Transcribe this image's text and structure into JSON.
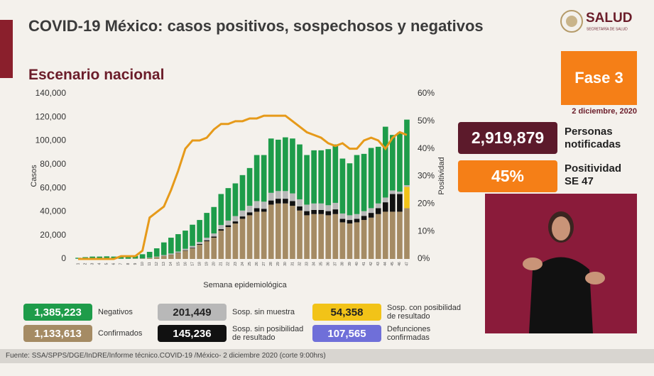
{
  "header": {
    "title": "COVID-19 México: casos positivos, sospechosos y negativos",
    "subtitle": "Escenario nacional",
    "logo": "SALUD",
    "logo_sub": "SECRETARÍA DE SALUD"
  },
  "chart_data": {
    "type": "bar",
    "stacked": true,
    "x_label": "Semana epidemiológica",
    "y_label": "Casos",
    "y2_label": "Positividad",
    "categories": [
      "1",
      "2",
      "3",
      "4",
      "5",
      "6",
      "7",
      "8",
      "9",
      "10",
      "11",
      "12",
      "13",
      "14",
      "15",
      "16",
      "17",
      "18",
      "19",
      "20",
      "21",
      "22",
      "23",
      "24",
      "25",
      "26",
      "27",
      "28",
      "29",
      "30",
      "31",
      "32",
      "33",
      "34",
      "35",
      "36",
      "37",
      "38",
      "39",
      "40",
      "41",
      "42",
      "43",
      "44",
      "45",
      "46",
      "47"
    ],
    "ylim": [
      0,
      140000
    ],
    "yticks": [
      0,
      {
        "value": 20000,
        "label": "20,000"
      },
      {
        "value": 40000,
        "label": "40,000"
      },
      {
        "value": 60000,
        "label": "60,000"
      },
      {
        "value": 80000,
        "label": "80,000"
      },
      {
        "value": 100000,
        "label": "100,000"
      },
      {
        "value": 120000,
        "label": "120,000"
      },
      {
        "value": 140000,
        "label": "140,000"
      }
    ],
    "y2lim": [
      0,
      60
    ],
    "y2ticks": [
      {
        "value": 0,
        "label": "0%"
      },
      {
        "value": 10,
        "label": "10%"
      },
      {
        "value": 20,
        "label": "20%"
      },
      {
        "value": 30,
        "label": "30%"
      },
      {
        "value": 40,
        "label": "40%"
      },
      {
        "value": 50,
        "label": "50%"
      },
      {
        "value": 60,
        "label": "60%"
      }
    ],
    "series": [
      {
        "name": "Confirmados",
        "color": "#a58b64",
        "total": "1,133,613",
        "values": [
          100,
          100,
          100,
          100,
          100,
          100,
          100,
          100,
          200,
          300,
          700,
          1500,
          2500,
          3500,
          5000,
          7000,
          9000,
          12000,
          15000,
          18000,
          24000,
          27000,
          30000,
          34000,
          37000,
          40000,
          40000,
          46000,
          47000,
          47000,
          45000,
          41000,
          37000,
          38000,
          38000,
          37000,
          38000,
          31000,
          30000,
          31000,
          33000,
          35000,
          38000,
          40000,
          40000,
          40000,
          43000
        ]
      },
      {
        "name": "Sosp. sin posibilidad de resultado",
        "color": "#111111",
        "total": "145,236",
        "values": [
          0,
          0,
          0,
          0,
          0,
          0,
          0,
          0,
          0,
          0,
          0,
          0,
          100,
          200,
          300,
          400,
          500,
          600,
          800,
          1000,
          1200,
          1500,
          1800,
          2000,
          2500,
          3000,
          2500,
          3500,
          4000,
          4000,
          4000,
          3500,
          3500,
          3500,
          3500,
          3500,
          4000,
          3000,
          3000,
          3000,
          3500,
          4000,
          5000,
          8000,
          15000,
          15000,
          0
        ]
      },
      {
        "name": "Sosp. con posibilidad de resultado",
        "color": "#f2c318",
        "total": "54,358",
        "values": [
          0,
          0,
          0,
          0,
          0,
          0,
          0,
          0,
          0,
          0,
          0,
          0,
          0,
          0,
          0,
          0,
          0,
          0,
          0,
          0,
          0,
          0,
          0,
          0,
          0,
          0,
          0,
          0,
          0,
          0,
          0,
          0,
          0,
          0,
          0,
          0,
          0,
          0,
          0,
          0,
          0,
          0,
          0,
          0,
          0,
          0,
          18000
        ]
      },
      {
        "name": "Sosp. sin muestra",
        "color": "#b8b8b8",
        "total": "201,449",
        "values": [
          100,
          100,
          100,
          100,
          100,
          100,
          100,
          100,
          200,
          200,
          300,
          500,
          700,
          900,
          1000,
          1200,
          1500,
          1800,
          2200,
          2600,
          3500,
          4000,
          4500,
          5000,
          5500,
          6000,
          6000,
          6500,
          6500,
          6500,
          6500,
          6000,
          5500,
          5500,
          5500,
          5000,
          5500,
          4500,
          4000,
          4000,
          4000,
          4000,
          4000,
          4000,
          3000,
          2000,
          1500
        ]
      },
      {
        "name": "Negativos",
        "color": "#1e9c4a",
        "total": "1,385,223",
        "values": [
          800,
          1300,
          1800,
          1800,
          2000,
          1800,
          1800,
          1800,
          2100,
          3500,
          5000,
          7000,
          10700,
          13400,
          14700,
          15400,
          18000,
          18600,
          21000,
          22400,
          26300,
          27500,
          27700,
          30000,
          32000,
          39000,
          39500,
          46000,
          43500,
          45500,
          46500,
          46500,
          42000,
          45000,
          45000,
          47500,
          49500,
          46500,
          44000,
          50000,
          48500,
          51000,
          48000,
          60000,
          47000,
          50000,
          55500
        ]
      }
    ],
    "extra_legend": {
      "name": "Defunciones confirmadas",
      "color": "#6f6fd9",
      "total": "107,565"
    },
    "positivity": {
      "color": "#e69a1a",
      "axis": "y2",
      "values": [
        0,
        0,
        0,
        0,
        0,
        0,
        1,
        1,
        1,
        3,
        15,
        17,
        19,
        25,
        32,
        40,
        43,
        43,
        44,
        47,
        49,
        49,
        50,
        50,
        51,
        51,
        52,
        52,
        52,
        52,
        50,
        48,
        46,
        45,
        44,
        42,
        41,
        42,
        40,
        40,
        43,
        44,
        43,
        40,
        44,
        46,
        45
      ]
    }
  },
  "panel": {
    "phase": "Fase 3",
    "date": "2 diciembre, 2020",
    "notified": "2,919,879",
    "notified_label": "Personas notificadas",
    "positivity": "45%",
    "positivity_label": "Positividad SE 47"
  },
  "footer": "Fuente: SSA/SPPS/DGE/InDRE/Informe técnico.COVID-19 /México- 2 diciembre 2020 (corte 9:00hrs)"
}
